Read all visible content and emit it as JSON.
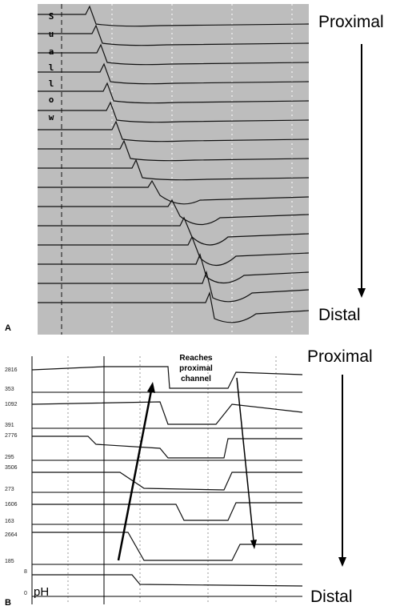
{
  "panel_a": {
    "label": "A",
    "swallow_letters": [
      "S",
      "u",
      "a",
      "l",
      "l",
      "o",
      "w"
    ],
    "top_label": "Proximal",
    "bottom_label": "Distal"
  },
  "panel_b": {
    "label": "B",
    "annotation": [
      "Reaches",
      "proximal",
      "channel"
    ],
    "top_label": "Proximal",
    "bottom_label": "Distal",
    "channels": [
      {
        "max": "2816",
        "min": "353"
      },
      {
        "max": "1092",
        "min": "391"
      },
      {
        "max": "2776",
        "min": "295"
      },
      {
        "max": "3506",
        "min": "273"
      },
      {
        "max": "1606",
        "min": "163"
      },
      {
        "max": "2664",
        "min": "185"
      }
    ],
    "ph": {
      "label": "pH",
      "max": "8",
      "min": "0"
    }
  }
}
